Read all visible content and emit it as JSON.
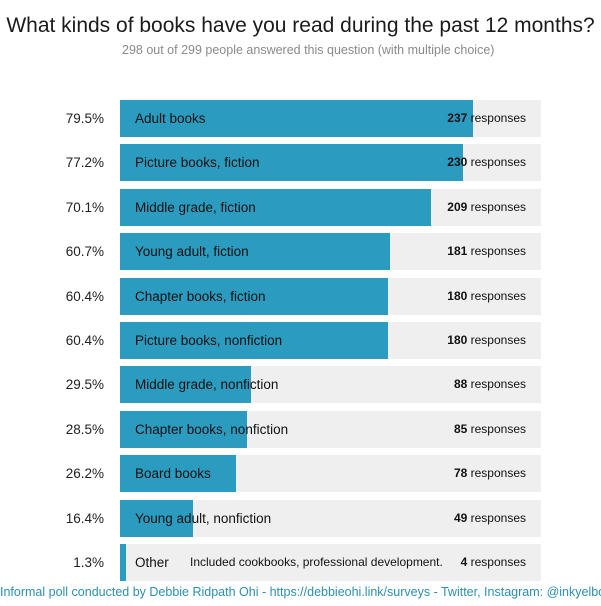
{
  "chart_data": {
    "type": "bar",
    "orientation": "horizontal",
    "title": "What kinds of books have you read during the past 12 months?",
    "subtitle": "298 out of 299 people answered this question (with multiple choice)",
    "response_suffix": "responses",
    "categories": [
      "Adult books",
      "Picture books, fiction",
      "Middle grade, fiction",
      "Young adult, fiction",
      "Chapter books, fiction",
      "Picture books, nonfiction",
      "Middle grade, nonfiction",
      "Chapter books, nonfiction",
      "Board books",
      "Young adult, nonfiction",
      "Other"
    ],
    "percent_labels": [
      "79.5%",
      "77.2%",
      "70.1%",
      "60.7%",
      "60.4%",
      "60.4%",
      "29.5%",
      "28.5%",
      "26.2%",
      "16.4%",
      "1.3%"
    ],
    "percentages": [
      79.5,
      77.2,
      70.1,
      60.7,
      60.4,
      60.4,
      29.5,
      28.5,
      26.2,
      16.4,
      1.3
    ],
    "responses": [
      237,
      230,
      209,
      181,
      180,
      180,
      88,
      85,
      78,
      49,
      4
    ],
    "annotations": [
      {
        "category": "Other",
        "text": "Included cookbooks, professional development."
      }
    ],
    "bar_color": "#2b9bbf",
    "track_color": "#efefef"
  },
  "footer": "Informal poll conducted by Debbie Ridpath Ohi - https://debbieohi.link/surveys - Twitter, Instagram: @inkyelbows"
}
